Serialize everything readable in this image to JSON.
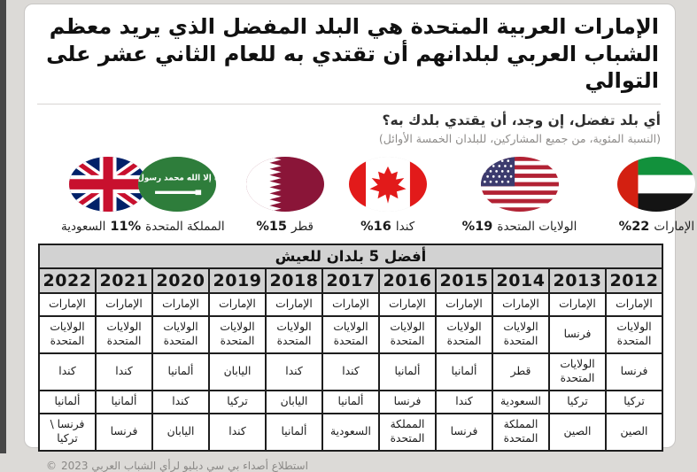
{
  "header": {
    "title": "الإمارات العربية المتحدة هي البلد المفضل الذي يريد معظم الشباب العربي لبلدانهم أن تقتدي به للعام الثاني عشر على التوالي",
    "question": "أي بلد تفضل، إن وجد، أن يقتدي بلدك به؟",
    "note": "(النسبة المئوية، من جميع المشاركين، للبلدان الخمسة الأوائل)"
  },
  "flags": {
    "pair_label": {
      "left": "السعودية",
      "percent": "11%",
      "right": "المملكة المتحدة"
    },
    "qatar": {
      "percent": "%15",
      "country": "قطر"
    },
    "canada": {
      "percent": "%16",
      "country": "كندا"
    },
    "usa": {
      "percent": "%19",
      "country": "الولايات المتحدة"
    },
    "uae": {
      "percent": "%22",
      "country": "الإمارات"
    }
  },
  "table": {
    "title": "أفضل 5 بلدان للعيش",
    "years": [
      "2022",
      "2021",
      "2020",
      "2019",
      "2018",
      "2017",
      "2016",
      "2015",
      "2014",
      "2013",
      "2012"
    ],
    "rows": [
      [
        "الإمارات",
        "الإمارات",
        "الإمارات",
        "الإمارات",
        "الإمارات",
        "الإمارات",
        "الإمارات",
        "الإمارات",
        "الإمارات",
        "الإمارات",
        "الإمارات"
      ],
      [
        "الولايات المتحدة",
        "الولايات المتحدة",
        "الولايات المتحدة",
        "الولايات المتحدة",
        "الولايات المتحدة",
        "الولايات المتحدة",
        "الولايات المتحدة",
        "الولايات المتحدة",
        "الولايات المتحدة",
        "فرنسا",
        "الولايات المتحدة"
      ],
      [
        "كندا",
        "كندا",
        "ألمانيا",
        "اليابان",
        "كندا",
        "كندا",
        "ألمانيا",
        "ألمانيا",
        "قطر",
        "الولايات المتحدة",
        "فرنسا"
      ],
      [
        "ألمانيا",
        "ألمانيا",
        "كندا",
        "تركيا",
        "اليابان",
        "ألمانيا",
        "فرنسا",
        "كندا",
        "السعودية",
        "تركيا",
        "تركيا"
      ],
      [
        "فرنسا \\ تركيا",
        "فرنسا",
        "اليابان",
        "كندا",
        "ألمانيا",
        "السعودية",
        "المملكة المتحدة",
        "فرنسا",
        "المملكة المتحدة",
        "الصين",
        "الصين"
      ]
    ]
  },
  "footer": {
    "copyright": "©",
    "text": "استطلاع أصداء بي سي دبليو لرأي الشباب العربي 2023"
  },
  "chart_data": [
    {
      "type": "bar",
      "title": "أي بلد تفضل، إن وجد، أن يقتدي بلدك به؟ (النسبة المئوية، من جميع المشاركين، للبلدان الخمسة الأوائل)",
      "categories": [
        "الإمارات",
        "الولايات المتحدة",
        "كندا",
        "قطر",
        "السعودية / المملكة المتحدة"
      ],
      "values": [
        22,
        19,
        16,
        15,
        11
      ],
      "unit": "%",
      "legend_position": "none",
      "grid": false
    },
    {
      "type": "table",
      "title": "أفضل 5 بلدان للعيش",
      "columns": [
        "2022",
        "2021",
        "2020",
        "2019",
        "2018",
        "2017",
        "2016",
        "2015",
        "2014",
        "2013",
        "2012"
      ],
      "rows": [
        [
          "الإمارات",
          "الإمارات",
          "الإمارات",
          "الإمارات",
          "الإمارات",
          "الإمارات",
          "الإمارات",
          "الإمارات",
          "الإمارات",
          "الإمارات",
          "الإمارات"
        ],
        [
          "الولايات المتحدة",
          "الولايات المتحدة",
          "الولايات المتحدة",
          "الولايات المتحدة",
          "الولايات المتحدة",
          "الولايات المتحدة",
          "الولايات المتحدة",
          "الولايات المتحدة",
          "الولايات المتحدة",
          "فرنسا",
          "الولايات المتحدة"
        ],
        [
          "كندا",
          "كندا",
          "ألمانيا",
          "اليابان",
          "كندا",
          "كندا",
          "ألمانيا",
          "ألمانيا",
          "قطر",
          "الولايات المتحدة",
          "فرنسا"
        ],
        [
          "ألمانيا",
          "ألمانيا",
          "كندا",
          "تركيا",
          "اليابان",
          "ألمانيا",
          "فرنسا",
          "كندا",
          "السعودية",
          "تركيا",
          "تركيا"
        ],
        [
          "فرنسا \\ تركيا",
          "فرنسا",
          "اليابان",
          "كندا",
          "ألمانيا",
          "السعودية",
          "المملكة المتحدة",
          "فرنسا",
          "المملكة المتحدة",
          "الصين",
          "الصين"
        ]
      ]
    }
  ],
  "colors": {
    "card_bg": "#ffffff",
    "page_bg": "#dcdad7",
    "table_header_bg": "#d2d2d2",
    "border_black": "#1e1e1e",
    "qatar_maroon": "#8A1538",
    "uk_blue": "#012169",
    "uk_red": "#C8102E",
    "saudi_green": "#2e7d3b",
    "canada_red": "#e21a1a",
    "us_blue": "#3C3B6E",
    "us_red": "#B22234",
    "uae_red": "#d32011",
    "uae_green": "#12913c"
  }
}
